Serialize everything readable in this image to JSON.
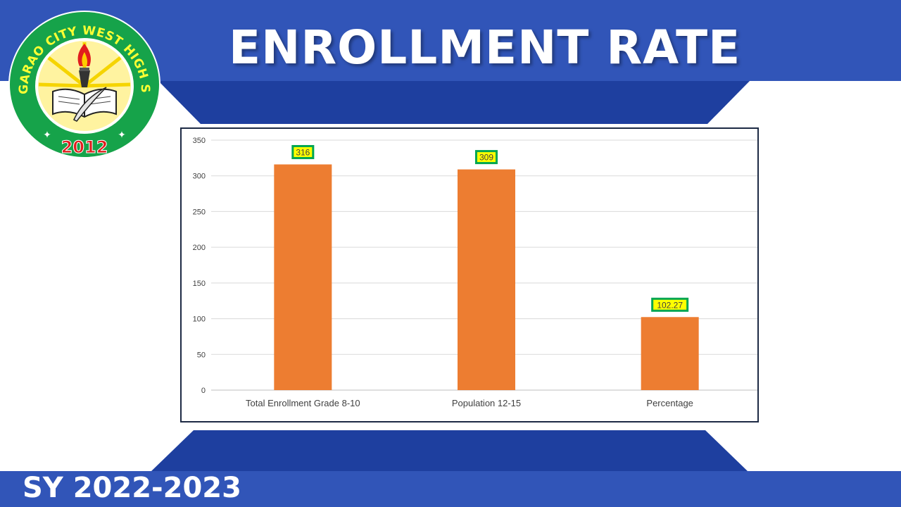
{
  "slide": {
    "title": "ENROLLMENT RATE",
    "footer": "SY 2022-2023",
    "colors": {
      "band": "#3155b8",
      "band_dark": "#1e3f9f",
      "bar": "#ed7d31",
      "label_fill": "#ffff00",
      "label_border": "#00a651",
      "frame": "#1d2a44"
    }
  },
  "logo": {
    "ring_text": "TUGUEGARAO CITY WEST HIGH SCHOOL",
    "year": "2012",
    "icons": [
      "torch-icon",
      "book-icon",
      "quill-icon",
      "star-icon"
    ]
  },
  "chart_data": {
    "type": "bar",
    "categories": [
      "Total Enrollment Grade 8-10",
      "Population  12-15",
      "Percentage"
    ],
    "values": [
      316,
      309,
      102.27
    ],
    "data_labels": [
      "316",
      "309",
      "102.27"
    ],
    "ylim": [
      0,
      350
    ],
    "yticks": [
      0,
      50,
      100,
      150,
      200,
      250,
      300,
      350
    ],
    "grid": true,
    "legend": "none",
    "title": "",
    "xlabel": "",
    "ylabel": ""
  }
}
